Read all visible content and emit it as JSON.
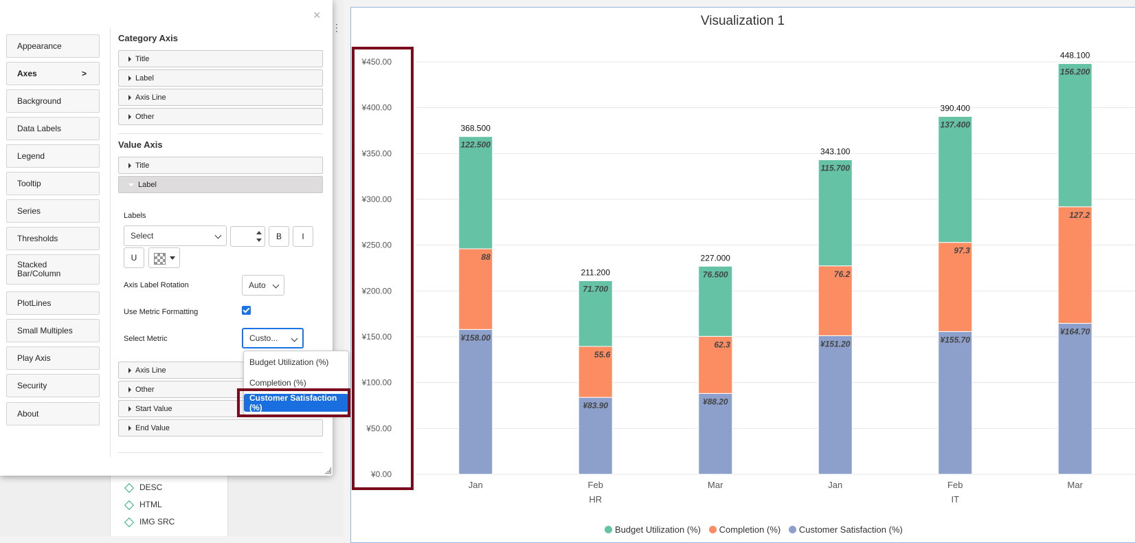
{
  "nav": {
    "items": [
      {
        "label": "Appearance"
      },
      {
        "label": "Axes",
        "active": true,
        "chevron": ">"
      },
      {
        "label": "Background"
      },
      {
        "label": "Data Labels"
      },
      {
        "label": "Legend"
      },
      {
        "label": "Tooltip"
      },
      {
        "label": "Series"
      },
      {
        "label": "Thresholds"
      },
      {
        "label": "Stacked\nBar/Column"
      },
      {
        "label": "PlotLines"
      },
      {
        "label": "Small Multiples"
      },
      {
        "label": "Play Axis"
      },
      {
        "label": "Security"
      },
      {
        "label": "About"
      }
    ]
  },
  "dialog": {
    "close": "×",
    "category_axis": {
      "title": "Category Axis",
      "sections": [
        "Title",
        "Label",
        "Axis Line",
        "Other"
      ]
    },
    "value_axis": {
      "title": "Value Axis",
      "sections_top": [
        "Title",
        "Label"
      ],
      "label_panel": {
        "labels_caption": "Labels",
        "font_select": "Select",
        "font_size": "",
        "bold": "B",
        "italic": "I",
        "underline": "U",
        "rotation_label": "Axis Label Rotation",
        "rotation_value": "Auto",
        "metric_format_label": "Use Metric Formatting",
        "metric_format_checked": true,
        "select_metric_label": "Select Metric",
        "select_metric_value": "Custo..."
      },
      "sections_bottom": [
        "Axis Line",
        "Other",
        "Start Value",
        "End Value"
      ]
    },
    "metric_options": [
      {
        "label": "Budget Utilization (%)",
        "selected": false
      },
      {
        "label": "Completion (%)",
        "selected": false
      },
      {
        "label": "Customer Satisfaction (%)",
        "selected": true
      }
    ]
  },
  "fields": [
    "DESC",
    "HTML",
    "IMG SRC"
  ],
  "chart_data": {
    "type": "bar",
    "stacked": true,
    "title": "Visualization 1",
    "categories": [
      "Jan",
      "Feb",
      "Mar",
      "Jan",
      "Feb",
      "Mar"
    ],
    "groups": [
      {
        "label": "HR",
        "span": [
          0,
          2
        ]
      },
      {
        "label": "IT",
        "span": [
          3,
          5
        ]
      }
    ],
    "series": [
      {
        "name": "Customer Satisfaction (%)",
        "color": "#8da0cb",
        "values": [
          158.0,
          83.9,
          88.2,
          151.2,
          155.7,
          164.7
        ],
        "labels": [
          "¥158.00",
          "¥83.90",
          "¥88.20",
          "¥151.20",
          "¥155.70",
          "¥164.70"
        ]
      },
      {
        "name": "Completion (%)",
        "color": "#fc8d62",
        "values": [
          88,
          55.6,
          62.3,
          76.2,
          97.3,
          127.2
        ],
        "labels": [
          "88",
          "55.6",
          "62.3",
          "76.2",
          "97.3",
          "127.2"
        ]
      },
      {
        "name": "Budget Utilization (%)",
        "color": "#66c2a5",
        "values": [
          122.5,
          71.7,
          76.5,
          115.7,
          137.4,
          156.2
        ],
        "labels": [
          "122.500",
          "71.700",
          "76.500",
          "115.700",
          "137.400",
          "156.200"
        ]
      }
    ],
    "totals": [
      "368.500",
      "211.200",
      "227.000",
      "343.100",
      "390.400",
      "448.100"
    ],
    "y_ticks": [
      "¥0.00",
      "¥50.00",
      "¥100.00",
      "¥150.00",
      "¥200.00",
      "¥250.00",
      "¥300.00",
      "¥350.00",
      "¥400.00",
      "¥450.00"
    ],
    "ylim": [
      0,
      450
    ],
    "grid": true,
    "legend_order": [
      "Budget Utilization (%)",
      "Completion (%)",
      "Customer Satisfaction (%)"
    ],
    "legend_position": "bottom"
  }
}
